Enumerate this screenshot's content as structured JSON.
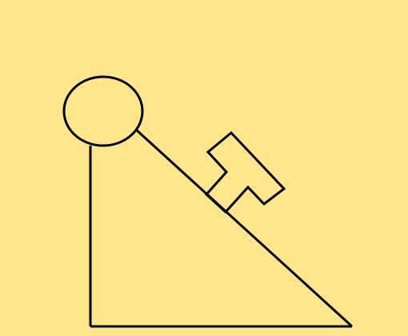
{
  "diagram": {
    "background_color": "#FFE68A",
    "stroke_color": "#000000",
    "elements": [
      "pulley-circle",
      "incline-triangle",
      "t-shaped-block"
    ]
  }
}
